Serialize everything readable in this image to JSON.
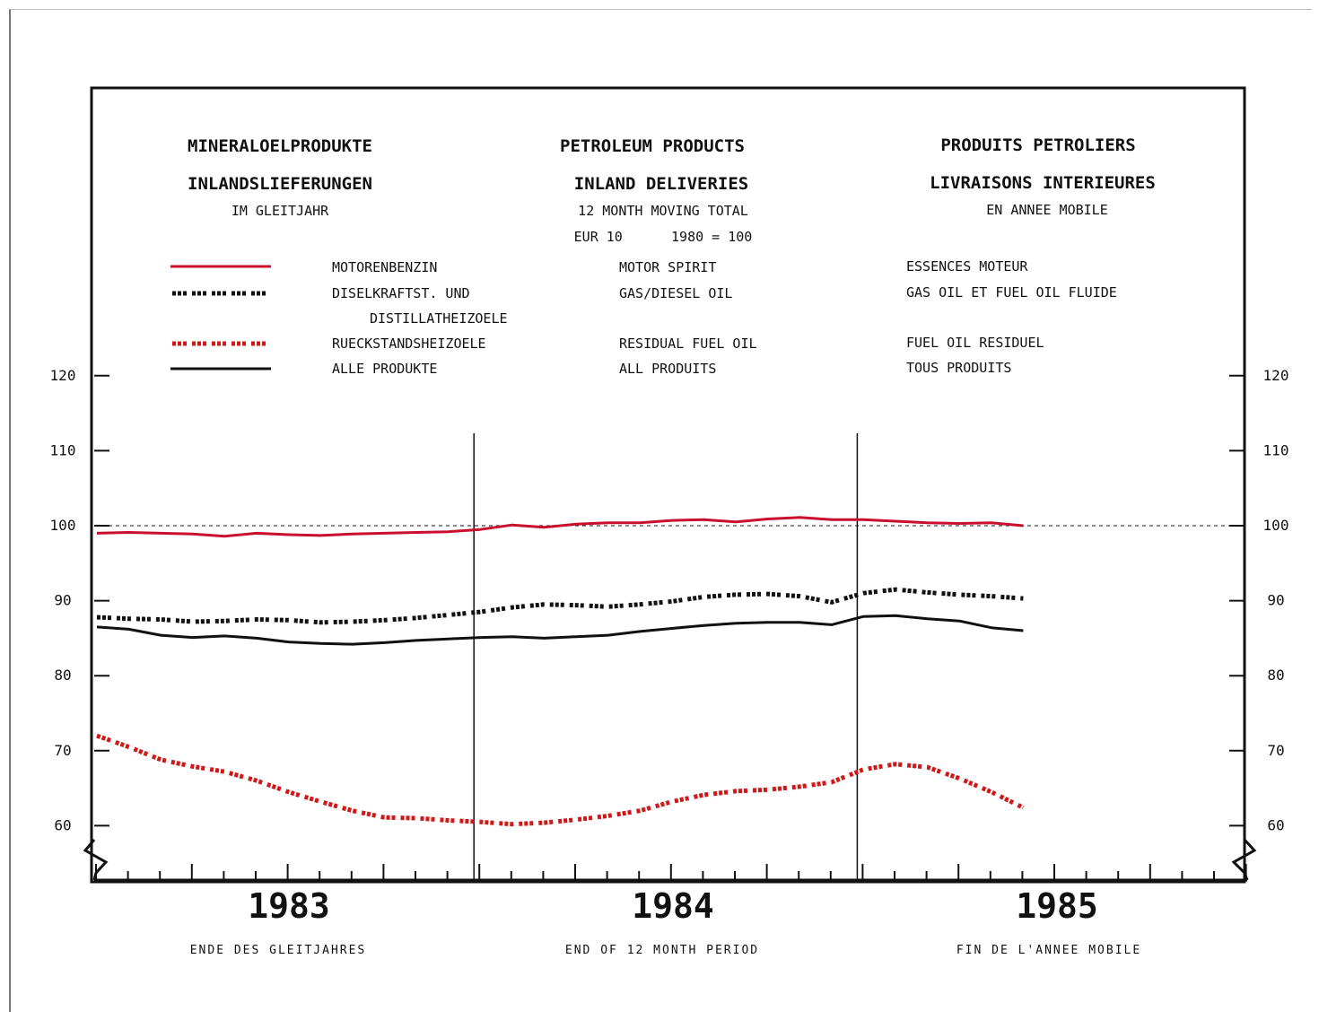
{
  "header": {
    "de": {
      "title": "MINERALOELPRODUKTE",
      "subtitle": "INLANDSLIEFERUNGEN",
      "note": "IM GLEITJAHR"
    },
    "en": {
      "title": "PETROLEUM PRODUCTS",
      "subtitle": "INLAND DELIVERIES",
      "note": "12 MONTH MOVING TOTAL",
      "note2": "EUR 10      1980 = 100"
    },
    "fr": {
      "title": "PRODUITS PETROLIERS",
      "subtitle": "LIVRAISONS INTERIEURES",
      "note": "EN ANNEE MOBILE"
    }
  },
  "legend": [
    {
      "de": "MOTORENBENZIN",
      "en": "MOTOR SPIRIT",
      "fr": "ESSENCES MOTEUR",
      "color": "#c8102e",
      "style": "solid"
    },
    {
      "de": "DISELKRAFTST. UND",
      "de2": "DISTILLATHEIZOELE",
      "en": "GAS/DIESEL OIL",
      "fr": "GAS OIL ET FUEL OIL FLUIDE",
      "color": "#111111",
      "style": "dotted"
    },
    {
      "de": "RUECKSTANDSHEIZOELE",
      "en": "RESIDUAL FUEL OIL",
      "fr": "FUEL OIL RESIDUEL",
      "color": "#d01818",
      "style": "dotted"
    },
    {
      "de": "ALLE PRODUKTE",
      "en": "ALL PRODUITS",
      "fr": "TOUS PRODUITS",
      "color": "#111111",
      "style": "solid"
    }
  ],
  "footer": {
    "de": "ENDE DES GLEITJAHRES",
    "en": "END OF 12 MONTH PERIOD",
    "fr": "FIN DE L'ANNEE MOBILE"
  },
  "chart_data": {
    "type": "line",
    "ylim": [
      55,
      125
    ],
    "y_ticks": [
      60,
      70,
      80,
      90,
      100,
      110,
      120
    ],
    "year_labels": [
      "1983",
      "1984",
      "1985"
    ],
    "x": [
      "1983-01",
      "1983-02",
      "1983-03",
      "1983-04",
      "1983-05",
      "1983-06",
      "1983-07",
      "1983-08",
      "1983-09",
      "1983-10",
      "1983-11",
      "1983-12",
      "1984-01",
      "1984-02",
      "1984-03",
      "1984-04",
      "1984-05",
      "1984-06",
      "1984-07",
      "1984-08",
      "1984-09",
      "1984-10",
      "1984-11",
      "1984-12",
      "1985-01",
      "1985-02",
      "1985-03",
      "1985-04",
      "1985-05",
      "1985-06"
    ],
    "reference_line": 100,
    "grid": false,
    "series": [
      {
        "name": "MOTORENBENZIN",
        "color": "#c8102e",
        "style": "solid",
        "values": [
          99.0,
          99.1,
          99.0,
          98.9,
          98.6,
          99.0,
          98.8,
          98.7,
          98.9,
          99.0,
          99.1,
          99.2,
          99.5,
          100.1,
          99.8,
          100.2,
          100.4,
          100.4,
          100.7,
          100.8,
          100.5,
          100.9,
          101.1,
          100.8,
          100.8,
          100.6,
          100.4,
          100.3,
          100.4,
          100.0
        ]
      },
      {
        "name": "DISELKRAFTST. UND DISTILLATHEIZOELE",
        "color": "#111111",
        "style": "dotted",
        "values": [
          87.8,
          87.6,
          87.5,
          87.2,
          87.3,
          87.5,
          87.4,
          87.1,
          87.2,
          87.4,
          87.7,
          88.1,
          88.5,
          89.1,
          89.5,
          89.4,
          89.2,
          89.5,
          89.9,
          90.5,
          90.8,
          90.9,
          90.6,
          89.8,
          91.0,
          91.5,
          91.1,
          90.8,
          90.6,
          90.3
        ]
      },
      {
        "name": "RUECKSTANDSHEIZOELE",
        "color": "#d01818",
        "style": "dotted",
        "values": [
          72.0,
          70.5,
          68.8,
          67.9,
          67.2,
          66.0,
          64.5,
          63.2,
          62.0,
          61.1,
          61.0,
          60.7,
          60.5,
          60.2,
          60.4,
          60.8,
          61.3,
          62.0,
          63.2,
          64.1,
          64.6,
          64.8,
          65.2,
          65.8,
          67.5,
          68.2,
          67.8,
          66.3,
          64.5,
          62.4
        ]
      },
      {
        "name": "ALLE PRODUKTE",
        "color": "#111111",
        "style": "solid",
        "values": [
          86.5,
          86.2,
          85.4,
          85.1,
          85.3,
          85.0,
          84.5,
          84.3,
          84.2,
          84.4,
          84.7,
          84.9,
          85.1,
          85.2,
          85.0,
          85.2,
          85.4,
          85.9,
          86.3,
          86.7,
          87.0,
          87.1,
          87.1,
          86.8,
          87.9,
          88.0,
          87.6,
          87.3,
          86.4,
          86.0
        ]
      }
    ]
  }
}
